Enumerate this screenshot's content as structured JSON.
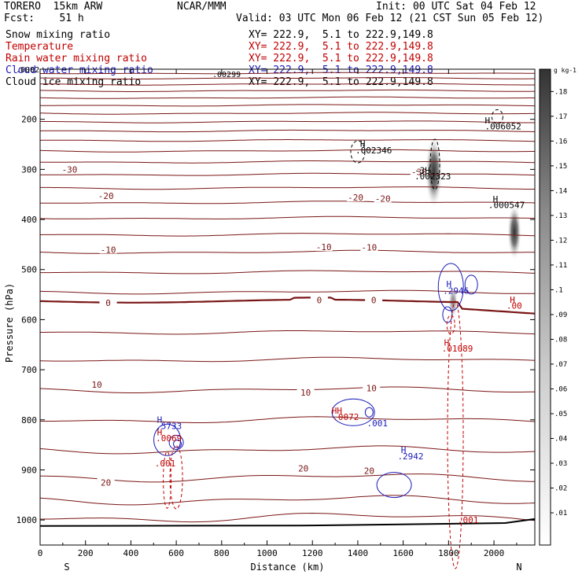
{
  "header": {
    "model": "TORERO  15km ARW",
    "forecast": "Fcst:    51 h",
    "center": "NCAR/MMM",
    "init": "Init: 00 UTC Sat 04 Feb 12",
    "valid": "Valid: 03 UTC Mon 06 Feb 12 (21 CST Sun 05 Feb 12)"
  },
  "fields": [
    {
      "label": "Snow mixing ratio",
      "xy": "XY= 222.9,  5.1 to 222.9,149.8",
      "color": "#000000"
    },
    {
      "label": "Temperature",
      "xy": "XY= 222.9,  5.1 to 222.9,149.8",
      "color": "#c00000"
    },
    {
      "label": "Rain water mixing ratio",
      "xy": "XY= 222.9,  5.1 to 222.9,149.8",
      "color": "#c00000"
    },
    {
      "label": "Cloud water mixing ratio",
      "xy": "XY= 222.9,  5.1 to 222.9,149.8",
      "color": "#1a1ab8"
    },
    {
      "label": "Cloud ice mixing ratio",
      "xy": "XY= 222.9,  5.1 to 222.9,149.8",
      "color": "#000000"
    }
  ],
  "chart_data": {
    "type": "cross-section",
    "xlabel": "Distance (km)",
    "ylabel": "Pressure (hPa)",
    "x_ticks": [
      0,
      200,
      400,
      600,
      800,
      1000,
      1200,
      1400,
      1600,
      1800,
      2000
    ],
    "y_ticks": [
      200,
      300,
      400,
      500,
      600,
      700,
      800,
      900,
      1000
    ],
    "xlim": [
      0,
      2180
    ],
    "ylim": [
      100,
      1050
    ],
    "endpoints": {
      "left": "S",
      "right": "N"
    },
    "colorbar": {
      "unit": "g kg-1",
      "ticks": [
        ".01",
        ".02",
        ".03",
        ".04",
        ".05",
        ".06",
        ".07",
        ".08",
        ".09",
        ".1",
        ".11",
        ".12",
        ".13",
        ".14",
        ".15",
        ".16",
        ".17",
        ".18"
      ]
    },
    "temperature_labels": [
      {
        "text": "-30",
        "x": 130,
        "p": 300
      },
      {
        "text": "-30",
        "x": 1670,
        "p": 305
      },
      {
        "text": "-20",
        "x": 290,
        "p": 353
      },
      {
        "text": "-20",
        "x": 1390,
        "p": 356
      },
      {
        "text": "-20",
        "x": 1510,
        "p": 358
      },
      {
        "text": "-10",
        "x": 300,
        "p": 460
      },
      {
        "text": "-10",
        "x": 1250,
        "p": 455
      },
      {
        "text": "-10",
        "x": 1450,
        "p": 456
      },
      {
        "text": "0",
        "x": 300,
        "p": 566
      },
      {
        "text": "0",
        "x": 1230,
        "p": 561
      },
      {
        "text": "0",
        "x": 1470,
        "p": 561
      },
      {
        "text": "10",
        "x": 250,
        "p": 730
      },
      {
        "text": "10",
        "x": 1170,
        "p": 745
      },
      {
        "text": "10",
        "x": 1460,
        "p": 737
      },
      {
        "text": "20",
        "x": 290,
        "p": 925
      },
      {
        "text": "20",
        "x": 1160,
        "p": 897
      },
      {
        "text": "20",
        "x": 1450,
        "p": 902
      }
    ],
    "extrema_labels": [
      {
        "text": "H",
        "x": 1410,
        "p": 255,
        "color": "#000000"
      },
      {
        "text": ".002346",
        "x": 1390,
        "p": 268,
        "color": "#000000"
      },
      {
        "text": "H",
        "x": 1960,
        "p": 208,
        "color": "#000000"
      },
      {
        "text": ".006052",
        "x": 1960,
        "p": 220,
        "color": "#000000"
      },
      {
        "text": "-3H",
        "x": 1650,
        "p": 308,
        "color": "#000000"
      },
      {
        "text": ".002323",
        "x": 1650,
        "p": 320,
        "color": "#000000"
      },
      {
        "text": "H",
        "x": 1995,
        "p": 365,
        "color": "#000000"
      },
      {
        "text": ".000547",
        "x": 1975,
        "p": 377,
        "color": "#000000"
      },
      {
        "text": "H",
        "x": 1790,
        "p": 535,
        "color": "#1a1ab8"
      },
      {
        "text": ".2946",
        "x": 1775,
        "p": 548,
        "color": "#1a1ab8"
      },
      {
        "text": "H",
        "x": 2070,
        "p": 566,
        "color": "#c00000"
      },
      {
        "text": ".00",
        "x": 2055,
        "p": 578,
        "color": "#c00000"
      },
      {
        "text": "H",
        "x": 1780,
        "p": 652,
        "color": "#c00000"
      },
      {
        "text": ".01089",
        "x": 1770,
        "p": 664,
        "color": "#c00000"
      },
      {
        "text": "HH",
        "x": 1285,
        "p": 788,
        "color": "#c00000"
      },
      {
        "text": ".0072",
        "x": 1290,
        "p": 800,
        "color": "#c00000"
      },
      {
        "text": ".001",
        "x": 1440,
        "p": 813,
        "color": "#1a1ab8"
      },
      {
        "text": "H",
        "x": 515,
        "p": 806,
        "color": "#1a1ab8"
      },
      {
        "text": ".5733",
        "x": 510,
        "p": 818,
        "color": "#1a1ab8"
      },
      {
        "text": "H",
        "x": 515,
        "p": 831,
        "color": "#c00000"
      },
      {
        "text": ".0069",
        "x": 510,
        "p": 843,
        "color": "#c00000"
      },
      {
        "text": ".001",
        "x": 505,
        "p": 893,
        "color": "#c00000"
      },
      {
        "text": "H",
        "x": 1590,
        "p": 866,
        "color": "#1a1ab8"
      },
      {
        "text": ".2942",
        "x": 1575,
        "p": 879,
        "color": "#1a1ab8"
      },
      {
        "text": ".001",
        "x": 1840,
        "p": 1006,
        "color": "#c00000"
      }
    ],
    "overlapping_labels": [
      ".00299",
      ".0002"
    ]
  }
}
